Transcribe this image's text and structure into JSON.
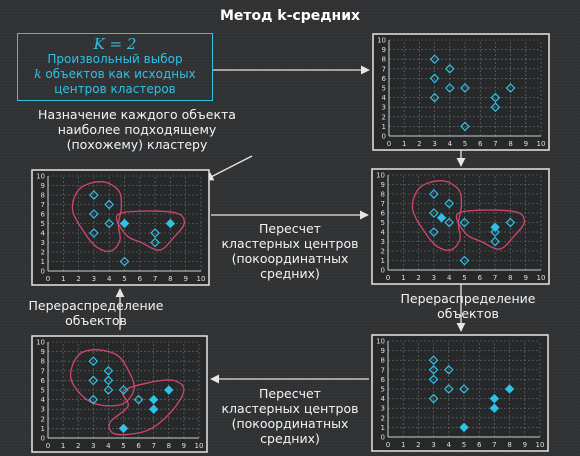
{
  "title": "Метод k-средних",
  "init_box": {
    "k_equation": "K = 2",
    "line1": "Произвольный выбор",
    "k_var": "k",
    "line2_rest": " объектов как исходных",
    "line3": "центров кластеров"
  },
  "steps": {
    "assign": [
      "Назначение каждого объекта",
      "наиболее подходящему",
      "(похожему) кластеру"
    ],
    "recompute_1": [
      "Пересчет",
      "кластерных центров",
      "(покоординатных",
      "средних)"
    ],
    "redistribute_left": [
      "Перераспределение",
      "объектов"
    ],
    "redistribute_right": [
      "Перераспределение",
      "объектов"
    ],
    "recompute_2": [
      "Пересчет",
      "кластерных центров",
      "(покоординатных",
      "средних)"
    ]
  },
  "colors": {
    "accent": "#2fc1e6",
    "cluster_outline": "#d2466e",
    "grid": "#6f7275",
    "frame": "#e6e6e6",
    "arrow": "#e6e6e6"
  },
  "chart_data": [
    {
      "type": "scatter",
      "id": "initial",
      "xlim": [
        0,
        10
      ],
      "ylim": [
        0,
        10
      ],
      "tick_labels": [
        "0",
        "1",
        "2",
        "3",
        "4",
        "5",
        "6",
        "7",
        "8",
        "9",
        "10"
      ],
      "points": [
        [
          3,
          8
        ],
        [
          3,
          6
        ],
        [
          3,
          4
        ],
        [
          4,
          7
        ],
        [
          4,
          5
        ],
        [
          5,
          5
        ],
        [
          5,
          1
        ],
        [
          7,
          4
        ],
        [
          7,
          3
        ],
        [
          8,
          5
        ]
      ],
      "centers": [],
      "clusters": []
    },
    {
      "type": "scatter",
      "id": "assigned",
      "xlim": [
        0,
        10
      ],
      "ylim": [
        0,
        10
      ],
      "tick_labels": [
        "0",
        "1",
        "2",
        "3",
        "4",
        "5",
        "6",
        "7",
        "8",
        "9",
        "10"
      ],
      "points": [
        [
          3,
          8
        ],
        [
          3,
          6
        ],
        [
          3,
          4
        ],
        [
          4,
          7
        ],
        [
          4,
          5
        ],
        [
          7,
          4
        ],
        [
          7,
          3
        ],
        [
          5,
          1
        ]
      ],
      "centers": [
        [
          5,
          5
        ],
        [
          8,
          5
        ]
      ],
      "clusters": [
        {
          "path": [
            [
              2.1,
              8.7
            ],
            [
              3.5,
              9.4
            ],
            [
              4.6,
              8.5
            ],
            [
              4.8,
              6.8
            ],
            [
              4.6,
              4.9
            ],
            [
              4.7,
              3.2
            ],
            [
              4.1,
              2.1
            ],
            [
              3.2,
              2.5
            ],
            [
              2.4,
              4.0
            ],
            [
              1.6,
              6.5
            ]
          ]
        },
        {
          "path": [
            [
              4.5,
              5.8
            ],
            [
              6.0,
              6.3
            ],
            [
              8.4,
              6.1
            ],
            [
              8.9,
              5.0
            ],
            [
              8.2,
              3.5
            ],
            [
              7.3,
              2.2
            ],
            [
              6.1,
              3.0
            ],
            [
              5.1,
              3.8
            ]
          ]
        }
      ]
    },
    {
      "type": "scatter",
      "id": "recomputed_1",
      "xlim": [
        0,
        10
      ],
      "ylim": [
        0,
        10
      ],
      "tick_labels": [
        "0",
        "1",
        "2",
        "3",
        "4",
        "5",
        "6",
        "7",
        "8",
        "9",
        "10"
      ],
      "points": [
        [
          3,
          8
        ],
        [
          3,
          6
        ],
        [
          3,
          4
        ],
        [
          4,
          7
        ],
        [
          4,
          5
        ],
        [
          5,
          5
        ],
        [
          7,
          4
        ],
        [
          7,
          3
        ],
        [
          8,
          5
        ],
        [
          5,
          1
        ]
      ],
      "centers": [
        [
          3.5,
          5.5
        ],
        [
          7,
          4.5
        ]
      ],
      "clusters": [
        {
          "path": [
            [
              2.1,
              8.7
            ],
            [
              3.5,
              9.4
            ],
            [
              4.6,
              8.5
            ],
            [
              4.8,
              6.8
            ],
            [
              4.6,
              4.9
            ],
            [
              4.7,
              3.2
            ],
            [
              4.1,
              2.1
            ],
            [
              3.2,
              2.5
            ],
            [
              2.4,
              4.0
            ],
            [
              1.6,
              6.5
            ]
          ]
        },
        {
          "path": [
            [
              4.5,
              5.8
            ],
            [
              6.0,
              6.3
            ],
            [
              8.4,
              6.1
            ],
            [
              8.9,
              5.0
            ],
            [
              8.2,
              3.5
            ],
            [
              7.3,
              2.2
            ],
            [
              6.1,
              3.0
            ],
            [
              5.1,
              3.8
            ]
          ]
        }
      ]
    },
    {
      "type": "scatter",
      "id": "redistributed",
      "xlim": [
        0,
        10
      ],
      "ylim": [
        0,
        10
      ],
      "tick_labels": [
        "0",
        "1",
        "2",
        "3",
        "4",
        "5",
        "6",
        "7",
        "8",
        "9",
        "10"
      ],
      "points": [
        [
          3,
          8
        ],
        [
          3,
          6
        ],
        [
          3,
          4
        ],
        [
          4,
          7
        ],
        [
          4,
          6
        ],
        [
          4,
          5
        ],
        [
          5,
          5
        ],
        [
          6,
          4
        ]
      ],
      "centers": [
        [
          8,
          5
        ],
        [
          7,
          4
        ],
        [
          7,
          3
        ],
        [
          5,
          1
        ]
      ],
      "clusters": [
        {
          "path": [
            [
              2.0,
              8.6
            ],
            [
              3.2,
              9.2
            ],
            [
              4.6,
              8.6
            ],
            [
              5.4,
              6.8
            ],
            [
              5.7,
              5.1
            ],
            [
              5.0,
              3.6
            ],
            [
              3.6,
              3.4
            ],
            [
              2.4,
              4.2
            ],
            [
              1.5,
              6.3
            ]
          ]
        },
        {
          "path": [
            [
              5.0,
              4.9
            ],
            [
              6.8,
              5.8
            ],
            [
              8.3,
              6.0
            ],
            [
              9.0,
              5.0
            ],
            [
              8.2,
              2.8
            ],
            [
              6.6,
              0.8
            ],
            [
              4.5,
              0.4
            ],
            [
              4.1,
              1.6
            ],
            [
              5.3,
              3.3
            ]
          ]
        }
      ]
    },
    {
      "type": "scatter",
      "id": "recomputed_2",
      "xlim": [
        0,
        10
      ],
      "ylim": [
        0,
        10
      ],
      "tick_labels": [
        "0",
        "1",
        "2",
        "3",
        "4",
        "5",
        "6",
        "7",
        "8",
        "9",
        "10"
      ],
      "points": [
        [
          3,
          8
        ],
        [
          3,
          7
        ],
        [
          3,
          6
        ],
        [
          3,
          4
        ],
        [
          4,
          7
        ],
        [
          4,
          5
        ],
        [
          5,
          5
        ]
      ],
      "centers": [
        [
          8,
          5
        ],
        [
          7,
          4
        ],
        [
          7,
          3
        ],
        [
          5,
          1
        ]
      ],
      "clusters": []
    }
  ]
}
